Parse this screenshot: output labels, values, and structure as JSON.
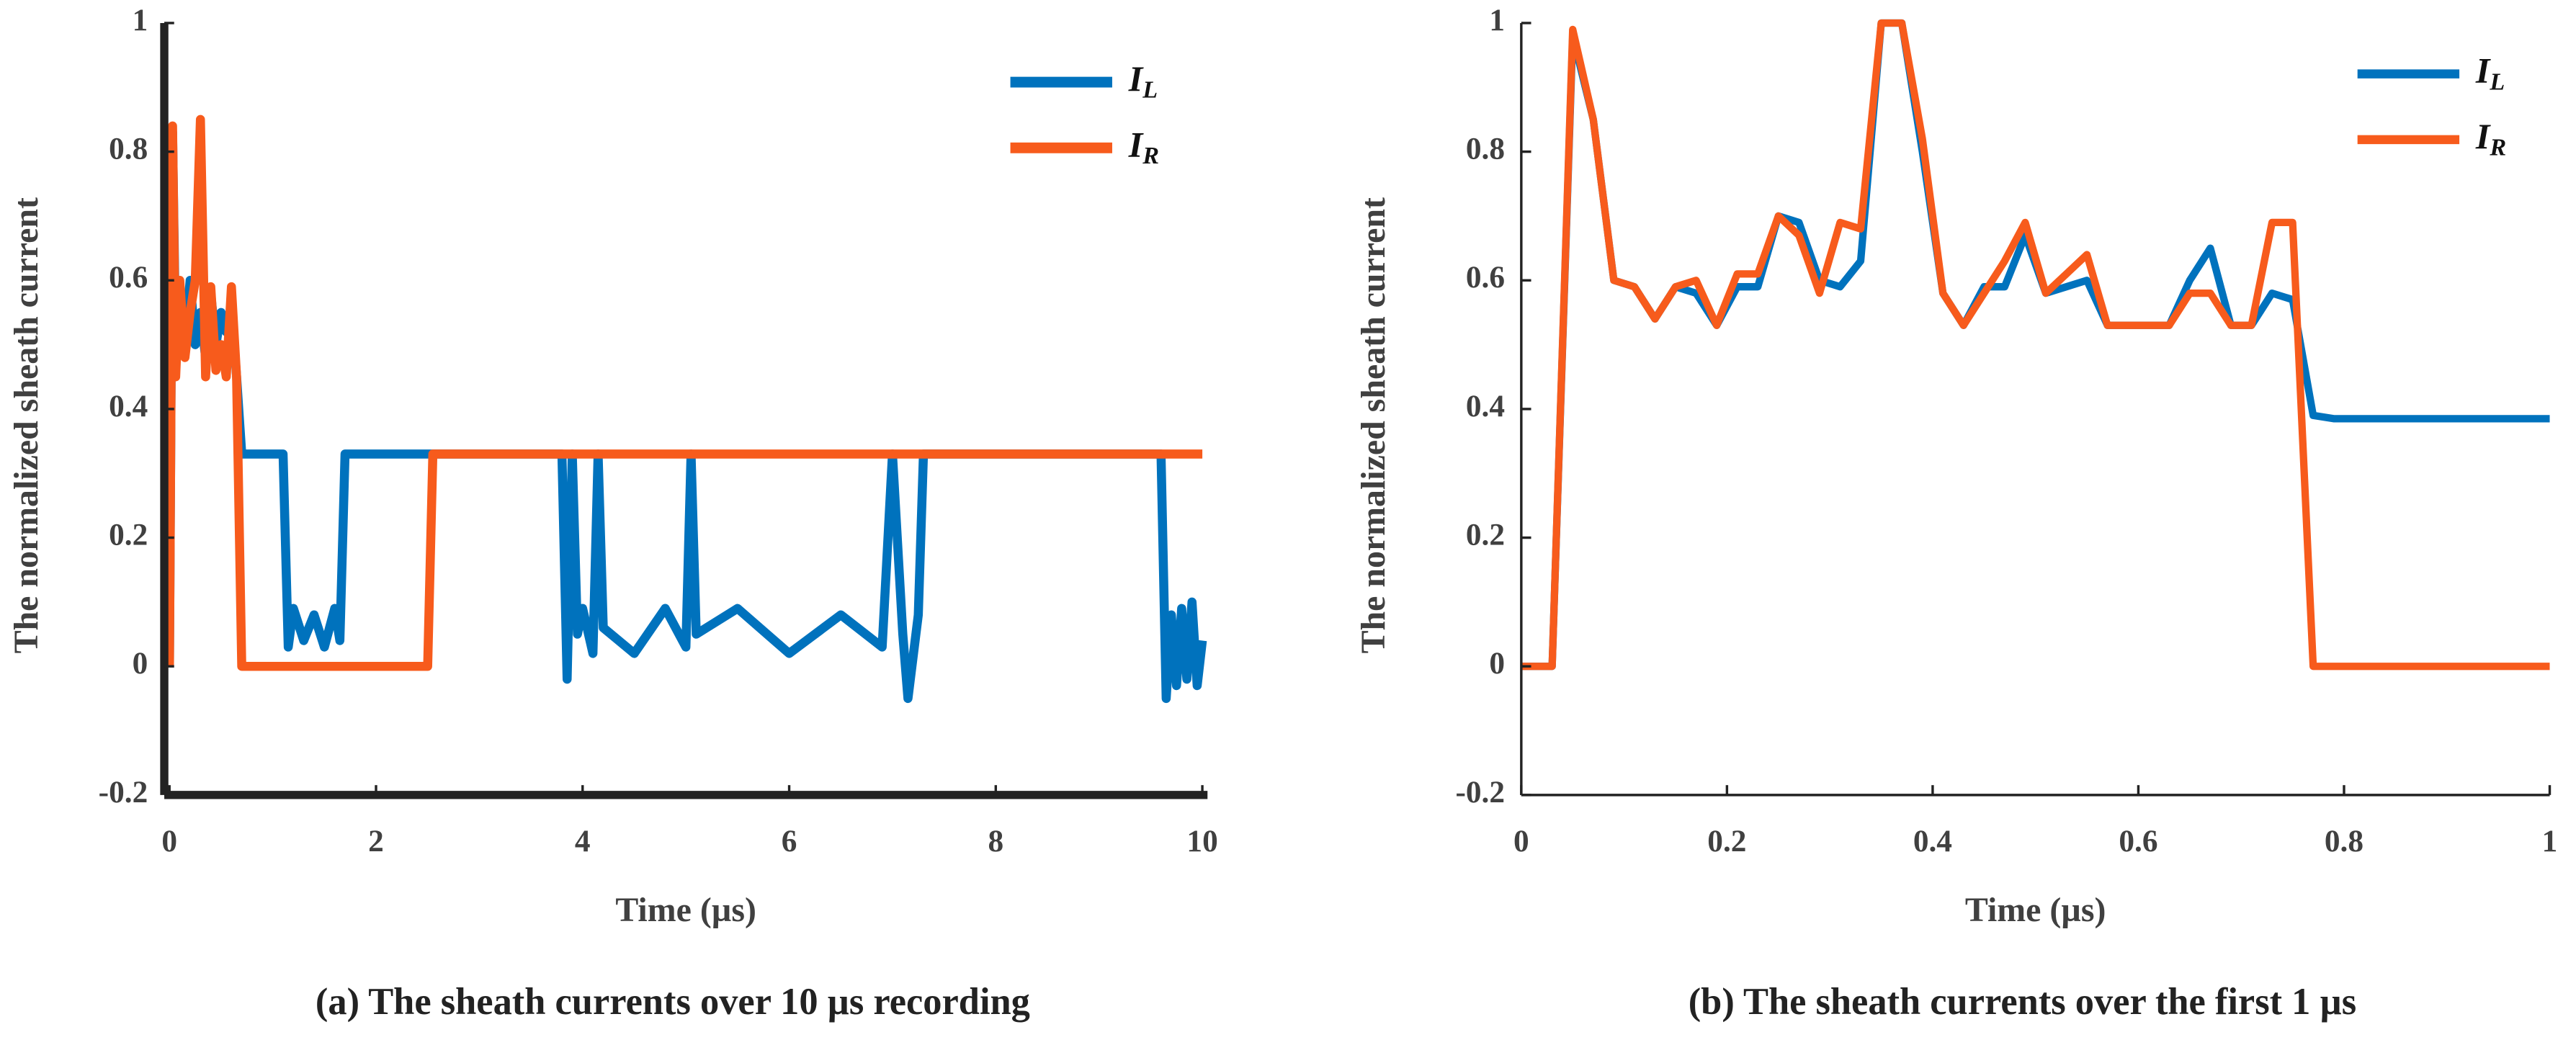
{
  "chart_data": [
    {
      "type": "line",
      "caption": "(a) The sheath currents over 10 µs recording",
      "xlabel": "Time (µs)",
      "ylabel": "The normalized sheath current",
      "x": [
        0,
        0.03,
        0.06,
        0.1,
        0.15,
        0.2,
        0.25,
        0.3,
        0.35,
        0.4,
        0.45,
        0.5,
        0.55,
        0.6,
        0.65,
        0.7,
        0.75,
        1.1,
        1.15,
        1.2,
        1.3,
        1.4,
        1.5,
        1.6,
        1.65,
        1.7,
        2.5,
        2.55,
        3.8,
        3.85,
        3.9,
        3.95,
        4.0,
        4.1,
        4.15,
        4.2,
        4.5,
        4.8,
        5.0,
        5.05,
        5.1,
        5.5,
        6.0,
        6.5,
        6.9,
        7.0,
        7.1,
        7.15,
        7.25,
        7.3,
        7.35,
        9.6,
        9.65,
        9.7,
        9.75,
        9.8,
        9.85,
        9.9,
        9.95,
        10.0
      ],
      "series": [
        {
          "name": "IL",
          "color": "#0072bd",
          "values": [
            0,
            0.83,
            0.5,
            0.55,
            0.5,
            0.6,
            0.5,
            0.55,
            0.48,
            0.58,
            0.5,
            0.55,
            0.52,
            0.56,
            0.45,
            0.33,
            0.33,
            0.33,
            0.03,
            0.09,
            0.04,
            0.08,
            0.03,
            0.09,
            0.04,
            0.33,
            0.33,
            0.33,
            0.33,
            -0.02,
            0.33,
            0.05,
            0.09,
            0.02,
            0.33,
            0.06,
            0.02,
            0.09,
            0.03,
            0.33,
            0.05,
            0.09,
            0.02,
            0.08,
            0.03,
            0.33,
            0.05,
            -0.05,
            0.08,
            0.33,
            0.33,
            0.33,
            -0.05,
            0.08,
            -0.03,
            0.09,
            -0.02,
            0.1,
            -0.03,
            0.04
          ]
        },
        {
          "name": "IR",
          "color": "#f75b1c",
          "values": [
            0,
            0.84,
            0.45,
            0.6,
            0.48,
            0.55,
            0.6,
            0.85,
            0.45,
            0.59,
            0.46,
            0.5,
            0.45,
            0.59,
            0.45,
            0,
            0,
            0,
            0,
            0,
            0,
            0,
            0,
            0,
            0,
            0,
            0,
            0.33,
            0.33,
            0.33,
            0.33,
            0.33,
            0.33,
            0.33,
            0.33,
            0.33,
            0.33,
            0.33,
            0.33,
            0.33,
            0.33,
            0.33,
            0.33,
            0.33,
            0.33,
            0.33,
            0.33,
            0.33,
            0.33,
            0.33,
            0.33,
            0.33,
            0.33,
            0.33,
            0.33,
            0.33,
            0.33,
            0.33,
            0.33,
            0.33
          ]
        }
      ],
      "xlim": [
        -0.05,
        10.05
      ],
      "xticks": [
        0,
        2,
        4,
        6,
        8,
        10
      ],
      "ylim": [
        -0.2,
        1
      ],
      "yticks": [
        -0.2,
        0,
        0.2,
        0.4,
        0.6,
        0.8,
        1
      ],
      "legend": "upper right"
    },
    {
      "type": "line",
      "caption": "(b) The sheath currents over the first 1 µs",
      "xlabel": "Time (µs)",
      "ylabel": "The normalized sheath current",
      "x": [
        0,
        0.03,
        0.05,
        0.07,
        0.09,
        0.11,
        0.13,
        0.15,
        0.17,
        0.19,
        0.21,
        0.23,
        0.25,
        0.27,
        0.29,
        0.31,
        0.33,
        0.35,
        0.37,
        0.39,
        0.41,
        0.43,
        0.45,
        0.47,
        0.49,
        0.51,
        0.53,
        0.55,
        0.57,
        0.59,
        0.61,
        0.63,
        0.65,
        0.67,
        0.69,
        0.71,
        0.73,
        0.75,
        0.77,
        0.79,
        1.0
      ],
      "series": [
        {
          "name": "IL",
          "color": "#0072bd",
          "values": [
            0,
            0,
            0.98,
            0.85,
            0.6,
            0.59,
            0.54,
            0.59,
            0.58,
            0.53,
            0.59,
            0.59,
            0.7,
            0.69,
            0.6,
            0.59,
            0.63,
            1.0,
            1.0,
            0.8,
            0.58,
            0.53,
            0.59,
            0.59,
            0.67,
            0.58,
            0.59,
            0.6,
            0.53,
            0.53,
            0.53,
            0.53,
            0.6,
            0.65,
            0.53,
            0.53,
            0.58,
            0.57,
            0.39,
            0.385,
            0.385
          ]
        },
        {
          "name": "IR",
          "color": "#f75b1c",
          "values": [
            0,
            0,
            0.99,
            0.85,
            0.6,
            0.59,
            0.54,
            0.59,
            0.6,
            0.53,
            0.61,
            0.61,
            0.7,
            0.67,
            0.58,
            0.69,
            0.68,
            1.0,
            1.0,
            0.82,
            0.58,
            0.53,
            0.58,
            0.63,
            0.69,
            0.58,
            0.61,
            0.64,
            0.53,
            0.53,
            0.53,
            0.53,
            0.58,
            0.58,
            0.53,
            0.53,
            0.69,
            0.69,
            0,
            0,
            0
          ]
        }
      ],
      "xlim": [
        0,
        1
      ],
      "xticks": [
        0,
        0.2,
        0.4,
        0.6,
        0.8,
        1
      ],
      "ylim": [
        -0.2,
        1
      ],
      "yticks": [
        -0.2,
        0,
        0.2,
        0.4,
        0.6,
        0.8,
        1
      ],
      "legend": "upper right"
    }
  ]
}
